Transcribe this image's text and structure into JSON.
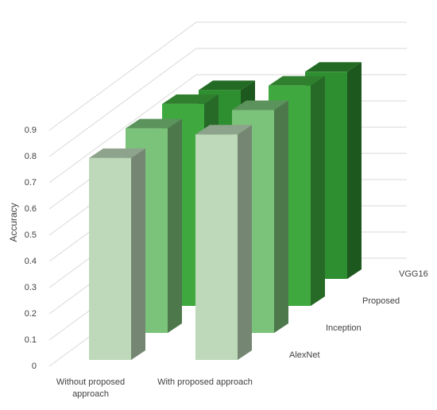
{
  "chart_data": {
    "type": "bar3d",
    "y_label": "Accuracy",
    "categories": [
      "Without proposed approach",
      "With proposed approach"
    ],
    "series": [
      {
        "name": "AlexNet",
        "color": "#bdd9b9",
        "values": [
          0.77,
          0.86
        ]
      },
      {
        "name": "Inception",
        "color": "#7bc27a",
        "values": [
          0.78,
          0.85
        ]
      },
      {
        "name": "Proposed",
        "color": "#3fa93f",
        "values": [
          0.77,
          0.84
        ]
      },
      {
        "name": "VGG16",
        "color": "#2e8f30",
        "values": [
          0.72,
          0.79
        ]
      }
    ],
    "ylim": [
      0,
      1
    ],
    "yticks": [
      0,
      0.1,
      0.2,
      0.3,
      0.4,
      0.5,
      0.6,
      0.7,
      0.8,
      0.9
    ],
    "grid": true
  }
}
